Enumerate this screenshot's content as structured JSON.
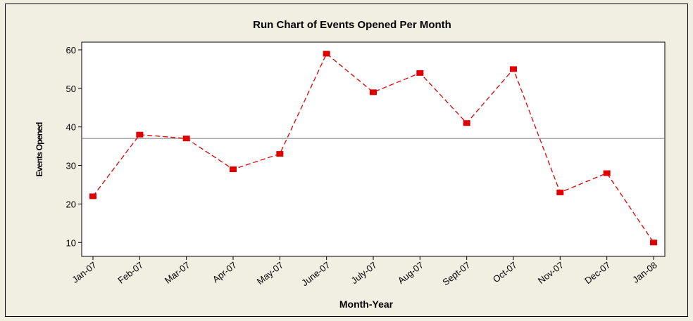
{
  "chart_data": {
    "type": "line",
    "title": "Run Chart of Events Opened Per Month",
    "x_label": "Month-Year",
    "y_label": "Events Opened",
    "categories": [
      "Jan-07",
      "Feb-07",
      "Mar-07",
      "Apr-07",
      "May-07",
      "June-07",
      "July-07",
      "Aug-07",
      "Sept-07",
      "Oct-07",
      "Nov-07",
      "Dec-07",
      "Jan-08"
    ],
    "series": [
      {
        "name": "Events Opened",
        "color": "#e00000",
        "values": [
          22,
          38,
          37,
          29,
          33,
          59,
          49,
          54,
          41,
          55,
          23,
          28,
          10
        ]
      }
    ],
    "reference_line": 37,
    "ylim": [
      6.4,
      62
    ],
    "yticks": [
      10,
      20,
      30,
      40,
      50,
      60
    ]
  }
}
